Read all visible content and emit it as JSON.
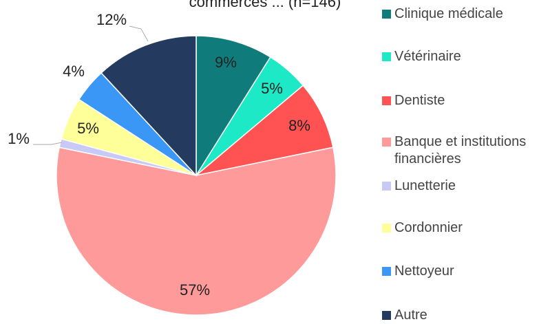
{
  "chart_data": {
    "type": "pie",
    "title": "commerces ... (n=146)",
    "categories": [
      "Clinique médicale",
      "Vétérinaire",
      "Dentiste",
      "Banque et institutions financières",
      "Lunetterie",
      "Cordonnier",
      "Nettoyeur",
      "Autre"
    ],
    "values": [
      9,
      5,
      8,
      57,
      1,
      5,
      4,
      12
    ],
    "value_labels": [
      "9%",
      "5%",
      "8%",
      "57%",
      "1%",
      "5%",
      "4%",
      "12%"
    ],
    "colors": [
      "#0f7b7b",
      "#1ee9c6",
      "#ff5252",
      "#ff9a9a",
      "#c9c9f5",
      "#ffff99",
      "#3a97f5",
      "#243a5e"
    ],
    "legend": "right"
  }
}
